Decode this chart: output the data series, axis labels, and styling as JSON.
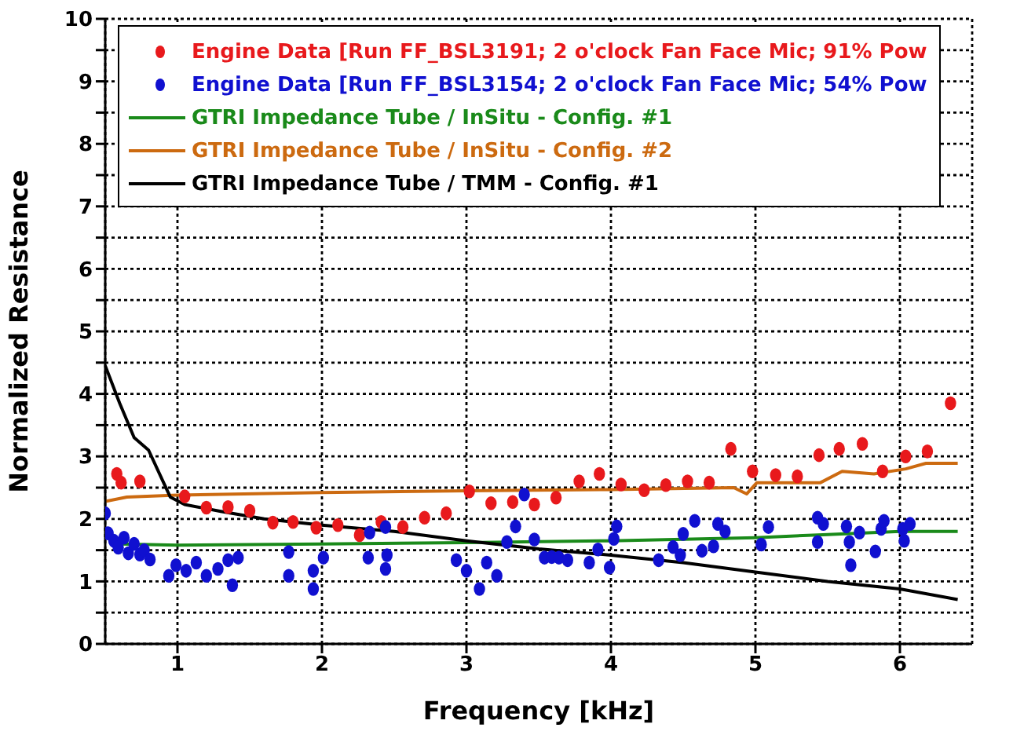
{
  "chart_data": {
    "type": "line",
    "xlabel": "Frequency [kHz]",
    "ylabel": "Normalized Resistance",
    "xlim": [
      0.5,
      6.5
    ],
    "xticks": [
      1,
      2,
      3,
      4,
      5,
      6
    ],
    "ylim": [
      0,
      10
    ],
    "yticks": [
      0,
      {
        "value": 0.5,
        "label": null
      },
      1,
      {
        "value": 1.5,
        "label": null
      },
      2,
      {
        "value": 2.5,
        "label": null
      },
      3,
      {
        "value": 3.5,
        "label": null
      },
      4,
      {
        "value": 4.5,
        "label": null
      },
      5,
      {
        "value": 5.5,
        "label": null
      },
      6,
      {
        "value": 6.5,
        "label": null
      },
      7,
      {
        "value": 7.5,
        "label": null
      },
      8,
      {
        "value": 8.5,
        "label": null
      },
      9,
      {
        "value": 9.5,
        "label": null
      },
      10
    ],
    "grid": true,
    "legend": "top",
    "line_style": "solid",
    "series": [
      {
        "name": "Engine Data [Run FF_BSL3191; 2 o'clock Fan Face Mic; 91% Pow",
        "type": "scatter",
        "marker": "circle",
        "color": "#e8191c",
        "x": [
          0.58,
          0.61,
          0.74,
          1.05,
          1.2,
          1.35,
          1.5,
          1.66,
          1.8,
          1.96,
          2.11,
          2.26,
          2.41,
          2.56,
          2.71,
          2.86,
          3.02,
          3.17,
          3.32,
          3.47,
          3.62,
          3.78,
          3.92,
          4.07,
          4.23,
          4.38,
          4.53,
          4.68,
          4.83,
          4.98,
          5.14,
          5.29,
          5.44,
          5.58,
          5.74,
          5.88,
          6.04,
          6.19,
          6.35
        ],
        "values": [
          2.72,
          2.58,
          2.6,
          2.36,
          2.18,
          2.19,
          2.13,
          1.94,
          1.95,
          1.86,
          1.9,
          1.74,
          1.95,
          1.87,
          2.02,
          2.09,
          2.44,
          2.25,
          2.27,
          2.23,
          2.34,
          2.6,
          2.72,
          2.55,
          2.46,
          2.54,
          2.6,
          2.58,
          3.12,
          2.76,
          2.7,
          2.68,
          3.02,
          3.12,
          3.2,
          2.76,
          3.0,
          3.08,
          3.85
        ]
      },
      {
        "name": "Engine Data [Run FF_BSL3154; 2 o'clock Fan Face Mic; 54% Pow",
        "type": "scatter",
        "marker": "circle",
        "color": "#1010d0",
        "x": [
          0.5,
          0.52,
          0.56,
          0.59,
          0.63,
          0.66,
          0.7,
          0.74,
          0.77,
          0.81,
          0.94,
          0.99,
          1.06,
          1.13,
          1.2,
          1.28,
          1.35,
          1.38,
          1.42,
          1.77,
          1.77,
          1.94,
          1.94,
          2.01,
          2.32,
          2.33,
          2.44,
          2.45,
          2.44,
          2.93,
          3.0,
          3.09,
          3.14,
          3.21,
          3.28,
          3.34,
          3.4,
          3.47,
          3.54,
          3.59,
          3.64,
          3.7,
          3.85,
          3.91,
          3.99,
          4.02,
          4.04,
          4.33,
          4.43,
          4.48,
          4.5,
          4.58,
          4.63,
          4.71,
          4.74,
          4.79,
          5.04,
          5.09,
          5.43,
          5.43,
          5.47,
          5.63,
          5.65,
          5.66,
          5.72,
          5.83,
          5.87,
          5.89,
          6.02,
          6.03,
          6.07
        ],
        "values": [
          2.09,
          1.77,
          1.65,
          1.54,
          1.7,
          1.45,
          1.6,
          1.43,
          1.5,
          1.35,
          1.09,
          1.26,
          1.17,
          1.3,
          1.09,
          1.2,
          1.34,
          0.94,
          1.38,
          1.47,
          1.09,
          0.88,
          1.17,
          1.38,
          1.38,
          1.78,
          1.87,
          1.42,
          1.2,
          1.34,
          1.17,
          0.88,
          1.3,
          1.09,
          1.63,
          1.88,
          2.39,
          1.67,
          1.38,
          1.39,
          1.38,
          1.34,
          1.3,
          1.51,
          1.22,
          1.68,
          1.88,
          1.34,
          1.55,
          1.42,
          1.76,
          1.97,
          1.49,
          1.56,
          1.92,
          1.8,
          1.59,
          1.87,
          1.63,
          2.02,
          1.92,
          1.88,
          1.63,
          1.26,
          1.78,
          1.48,
          1.84,
          1.97,
          1.84,
          1.65,
          1.92
        ]
      },
      {
        "name": "GTRI Impedance Tube / InSitu - Config. #1",
        "color": "#1a8a1a",
        "x": [
          0.6,
          1.0,
          2.0,
          3.0,
          4.0,
          5.0,
          5.5,
          6.0,
          6.4
        ],
        "values": [
          1.6,
          1.58,
          1.6,
          1.62,
          1.65,
          1.7,
          1.75,
          1.8,
          1.8
        ]
      },
      {
        "name": "GTRI Impedance Tube / InSitu - Config. #2",
        "color": "#cc6a10",
        "x": [
          0.5,
          0.65,
          1.0,
          2.0,
          3.0,
          4.0,
          4.85,
          4.94,
          5.01,
          5.45,
          5.6,
          5.82,
          6.04,
          6.18,
          6.4
        ],
        "values": [
          2.28,
          2.35,
          2.38,
          2.42,
          2.45,
          2.47,
          2.5,
          2.4,
          2.58,
          2.58,
          2.76,
          2.72,
          2.8,
          2.89,
          2.89
        ]
      },
      {
        "name": "GTRI Impedance Tube / TMM - Config. #1",
        "color": "#000000",
        "x": [
          0.5,
          0.6,
          0.7,
          0.8,
          0.88,
          0.95,
          1.05,
          1.3,
          1.6,
          2.0,
          2.5,
          3.0,
          3.5,
          4.0,
          4.5,
          5.0,
          5.5,
          6.0,
          6.4
        ],
        "values": [
          4.45,
          3.85,
          3.3,
          3.1,
          2.7,
          2.35,
          2.23,
          2.12,
          2.0,
          1.9,
          1.8,
          1.65,
          1.52,
          1.42,
          1.3,
          1.15,
          1.0,
          0.88,
          0.71
        ]
      }
    ]
  }
}
